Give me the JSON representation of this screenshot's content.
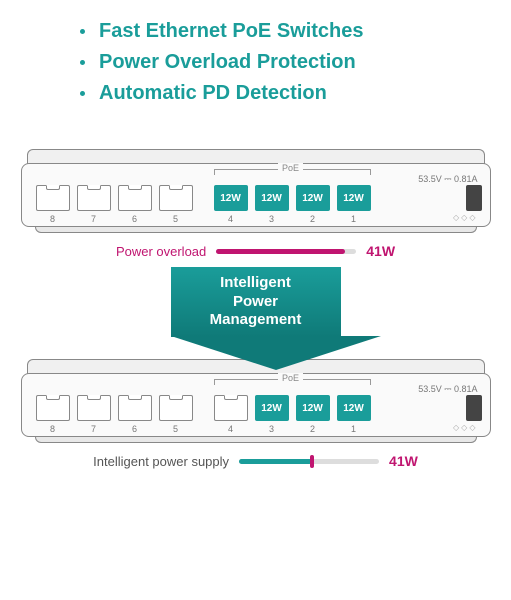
{
  "colors": {
    "teal": "#1a9d9a",
    "teal_dark": "#0f7a78",
    "magenta": "#c01570",
    "grey_text": "#666666"
  },
  "bullets": [
    "Fast Ethernet PoE Switches",
    "Power Overload Protection",
    "Automatic PD Detection"
  ],
  "switch": {
    "spec_text": "53.5V ⎓ 0.81A",
    "poe_label": "PoE",
    "port_numbers": [
      "8",
      "7",
      "6",
      "5",
      "4",
      "3",
      "2",
      "1"
    ],
    "port_watt": "12W"
  },
  "switch_top": {
    "active_ports": [
      true,
      true,
      true,
      true
    ]
  },
  "switch_bottom": {
    "active_ports": [
      false,
      true,
      true,
      true
    ]
  },
  "meter_top": {
    "label": "Power overload",
    "value": "41W",
    "fill_percent": 92,
    "label_color": "#c01570",
    "fill_color": "#c01570",
    "value_color": "#c01570"
  },
  "arrow": {
    "text": "Intelligent\nPower\nManagement"
  },
  "meter_bottom": {
    "label": "Intelligent power supply",
    "value": "41W",
    "fill_percent": 52,
    "label_color": "#555555",
    "fill_color": "#1a9d9a",
    "thumb_color": "#c01570",
    "value_color": "#c01570"
  }
}
